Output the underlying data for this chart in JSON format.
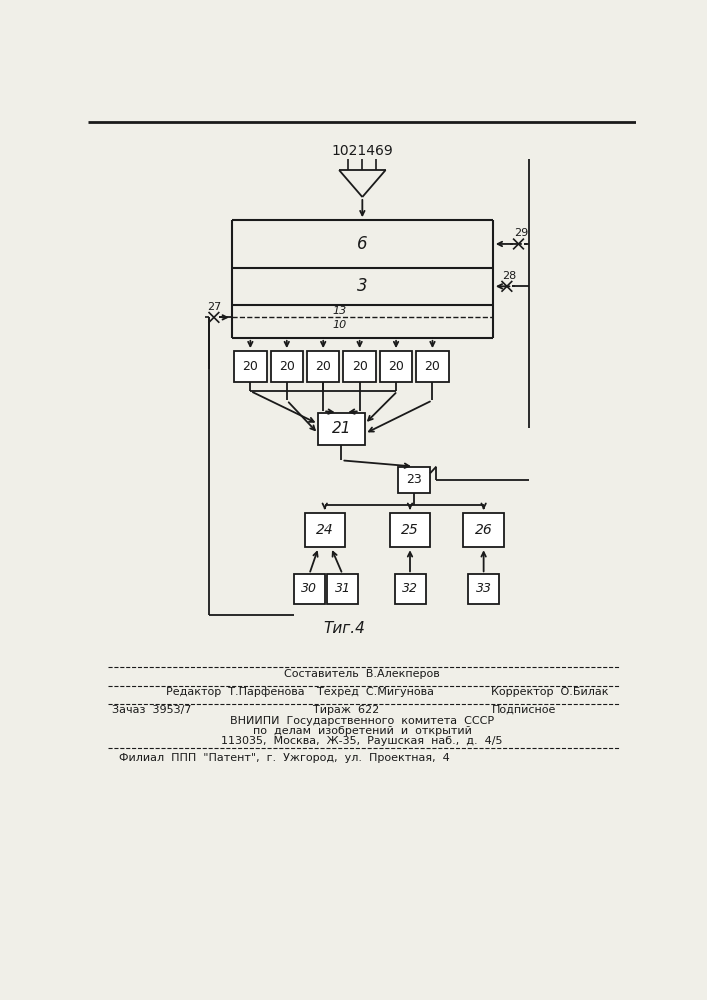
{
  "title": "1021469",
  "fig_label": "Τиг.4",
  "background_color": "#f0efe8",
  "line_color": "#1a1a1a",
  "text_color": "#1a1a1a",
  "top_line_color": "#555555",
  "footer": {
    "line1_center": "Составитель  В.Алекперов",
    "line2_left": "Редактор  Т.Парфенова",
    "line2_center": "Техред  С.Мигунова",
    "line2_right": "Корректор  О.Билак",
    "line3_left": "Зачаз  3953/7",
    "line3_center": "Тираж  622",
    "line3_right": "Подписное",
    "line4": "ВНИИПИ  Государственного  комитета  СССР",
    "line5": "по  делам  изобретений  и  открытий",
    "line6": "113035,  Москва,  Ж-35,  Раушская  наб.,  д.  4/5",
    "line7": "Филиал  ППП  \"Патент\",  г.  Ужгород,  ул.  Проектная,  4"
  }
}
